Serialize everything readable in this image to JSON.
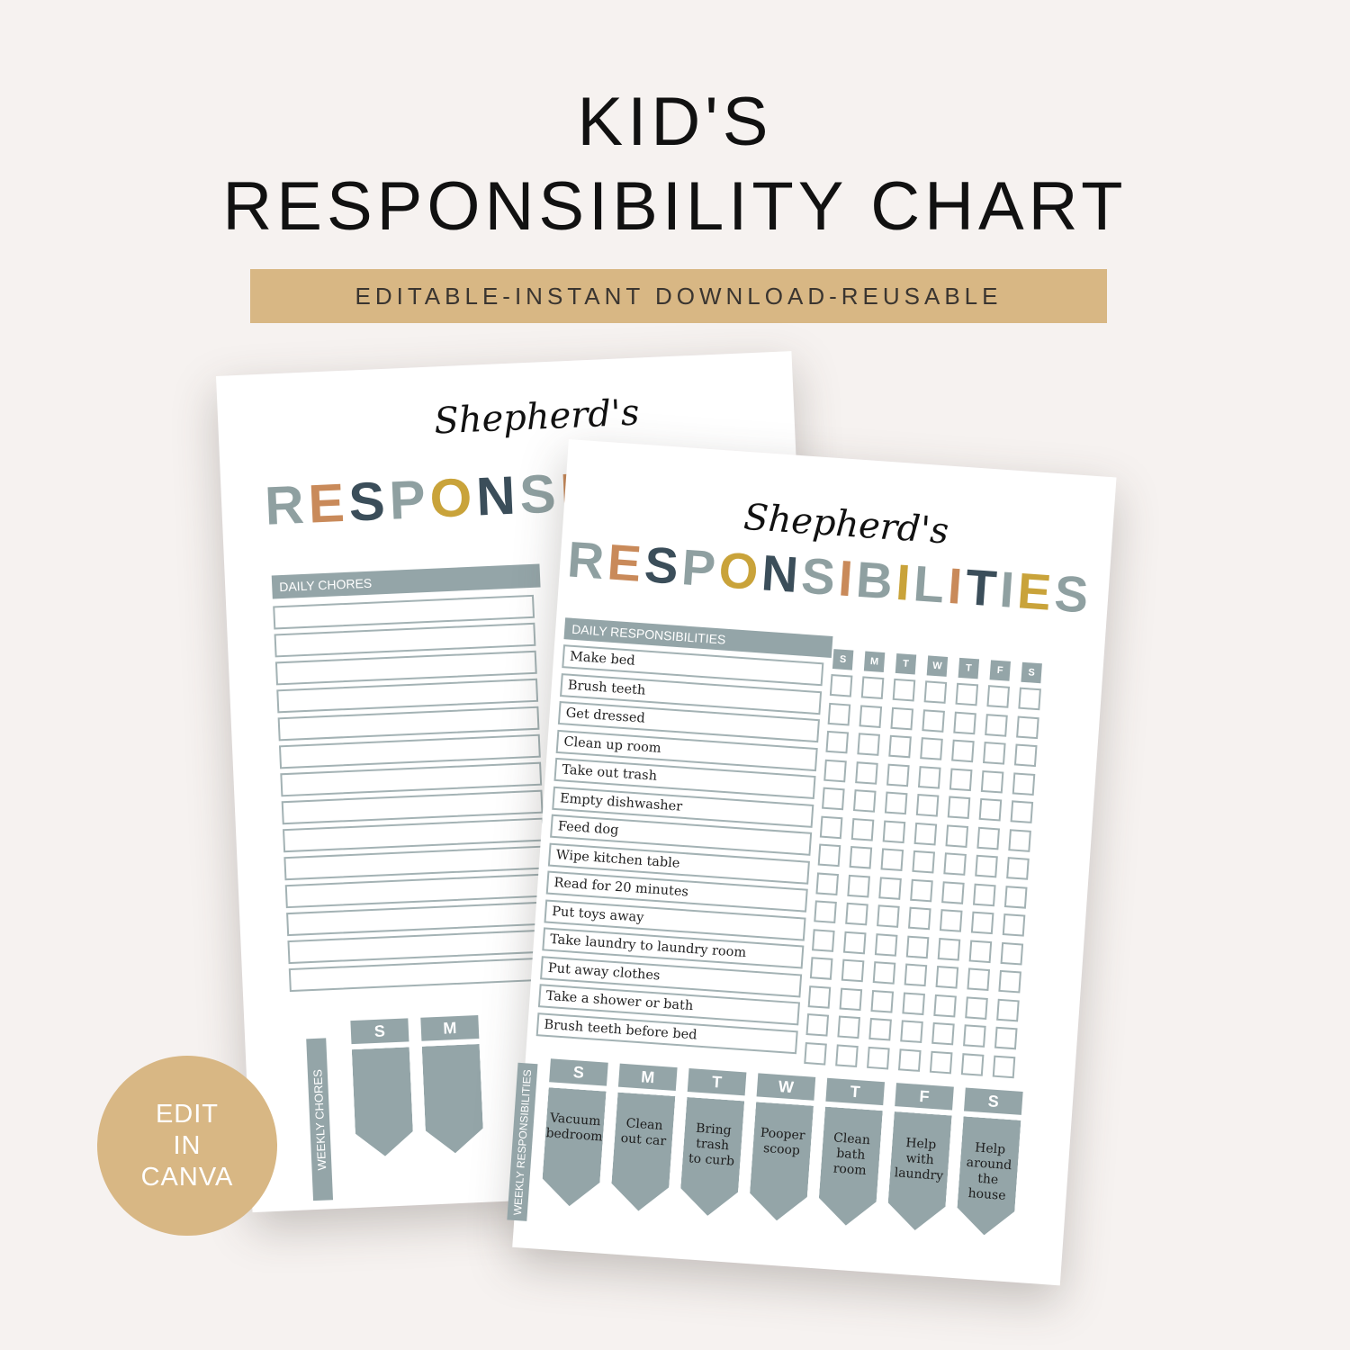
{
  "header": {
    "title_line1": "KID'S",
    "title_line2": "RESPONSIBILITY CHART",
    "banner": "EDITABLE-INSTANT DOWNLOAD-REUSABLE"
  },
  "badge": {
    "line1": "EDIT",
    "line2": "IN",
    "line3": "CANVA"
  },
  "colors": {
    "background": "#f6f2f0",
    "accent": "#d8b784",
    "slate": "#94a5a8"
  },
  "back_page": {
    "name": "Shepherd's",
    "title_partial": [
      "R",
      "E",
      "S",
      "P",
      "O",
      "N",
      "S",
      "I"
    ],
    "daily_header": "DAILY CHORES",
    "weekly_label": "WEEKLY CHORES",
    "weekly_days": [
      "S",
      "M"
    ]
  },
  "front_page": {
    "name": "Shepherd's",
    "title": [
      "R",
      "E",
      "S",
      "P",
      "O",
      "N",
      "S",
      "I",
      "B",
      "I",
      "L",
      "I",
      "T",
      "I",
      "E",
      "S"
    ],
    "daily_header": "DAILY RESPONSIBILITIES",
    "days": [
      "S",
      "M",
      "T",
      "W",
      "T",
      "F",
      "S"
    ],
    "tasks": [
      "Make bed",
      "Brush teeth",
      "Get dressed",
      "Clean up room",
      "Take out trash",
      "Empty dishwasher",
      "Feed dog",
      "Wipe kitchen table",
      "Read for 20 minutes",
      "Put toys away",
      "Take laundry to laundry room",
      "Put away clothes",
      "Take a shower or bath",
      "Brush teeth before bed"
    ],
    "weekly_label": "WEEKLY RESPONSIBILITIES",
    "weekly": [
      {
        "day": "S",
        "task": "Vacuum\nbedroom"
      },
      {
        "day": "M",
        "task": "Clean\nout car"
      },
      {
        "day": "T",
        "task": "Bring\ntrash\nto curb"
      },
      {
        "day": "W",
        "task": "Pooper\nscoop"
      },
      {
        "day": "T",
        "task": "Clean\nbath\nroom"
      },
      {
        "day": "F",
        "task": "Help\nwith\nlaundry"
      },
      {
        "day": "S",
        "task": "Help\naround\nthe house"
      }
    ]
  }
}
